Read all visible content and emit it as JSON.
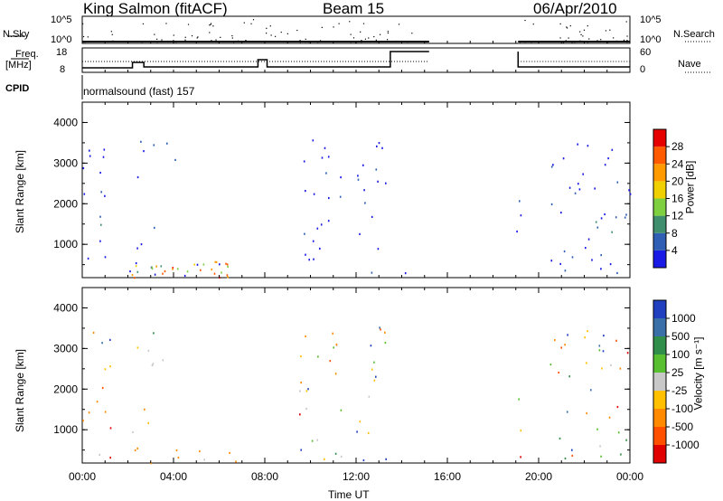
{
  "header": {
    "station": "King Salmon (fitACF)",
    "beam": "Beam 15",
    "date": "06/Apr/2010"
  },
  "panels": {
    "nsky_label": "N.Sky",
    "nsearch_label": "N.Search",
    "nsky_ticks": [
      "10^5",
      "10^0"
    ],
    "nsearch_ticks": [
      "10^5",
      "10^0"
    ],
    "freq_label_top": "Freq.",
    "freq_label_unit": "[MHz]",
    "freq_ticks": [
      "18",
      "8"
    ],
    "nave_label": "Nave",
    "nave_ticks": [
      "60",
      "0"
    ],
    "cpid_label": "CPID",
    "cpid_value": "normalsound (fast) 157"
  },
  "axes": {
    "ylabel": "Slant Range [km]",
    "xlabel": "Time UT",
    "yticks": [
      "1000",
      "2000",
      "3000",
      "4000"
    ],
    "xticks": [
      "00:00",
      "04:00",
      "08:00",
      "12:00",
      "16:00",
      "20:00",
      "00:00"
    ]
  },
  "power_scale": {
    "label": "Power [dB]",
    "ticks": [
      "4",
      "8",
      "12",
      "16",
      "20",
      "24",
      "28"
    ],
    "colors": [
      "#1a1ae6",
      "#2e5fb4",
      "#3f8f6e",
      "#7fd040",
      "#f0d000",
      "#ff9a00",
      "#ff5a00",
      "#e60000"
    ]
  },
  "velocity_scale": {
    "label": "Velocity [m s⁻¹]",
    "ticks": [
      "1000",
      "500",
      "100",
      "25",
      "-25",
      "-100",
      "-500",
      "-1000"
    ],
    "colors": [
      "#2040c0",
      "#3a70a8",
      "#2f8f4a",
      "#58c030",
      "#c8c8c8",
      "#ffc000",
      "#ff8a00",
      "#ff5000",
      "#e00000"
    ]
  },
  "chart_data": [
    {
      "type": "heatmap",
      "title": "Power",
      "x_range_hours": [
        0,
        24
      ],
      "ylim": [
        180,
        4500
      ],
      "clusters": [
        {
          "t0": 0.0,
          "t1": 1.3,
          "r0": 300,
          "r1": 3500,
          "level": "low"
        },
        {
          "t0": 0.1,
          "t1": 1.1,
          "r0": 1300,
          "r1": 1800,
          "level": "mid"
        },
        {
          "t0": 2.3,
          "t1": 4.2,
          "r0": 2600,
          "r1": 3600,
          "level": "low"
        },
        {
          "t0": 2.0,
          "t1": 3.2,
          "r0": 300,
          "r1": 1600,
          "level": "low"
        },
        {
          "t0": 2.0,
          "t1": 7.0,
          "r0": 200,
          "r1": 600,
          "level": "high"
        },
        {
          "t0": 9.5,
          "t1": 11.5,
          "r0": 250,
          "r1": 3600,
          "level": "low"
        },
        {
          "t0": 12.0,
          "t1": 13.5,
          "r0": 250,
          "r1": 3600,
          "level": "low"
        },
        {
          "t0": 13.5,
          "t1": 15.0,
          "r0": 250,
          "r1": 450,
          "level": "low"
        },
        {
          "t0": 19.0,
          "t1": 19.3,
          "r0": 250,
          "r1": 3200,
          "level": "low"
        },
        {
          "t0": 20.5,
          "t1": 24.0,
          "r0": 250,
          "r1": 3500,
          "level": "low"
        },
        {
          "t0": 22.0,
          "t1": 24.0,
          "r0": 1000,
          "r1": 1800,
          "level": "mid"
        }
      ]
    },
    {
      "type": "heatmap",
      "title": "Velocity",
      "x_range_hours": [
        0,
        24
      ],
      "ylim": [
        180,
        4500
      ],
      "clusters": [
        {
          "t0": 0.0,
          "t1": 1.3,
          "r0": 300,
          "r1": 3500,
          "level": "mixed"
        },
        {
          "t0": 0.2,
          "t1": 1.0,
          "r0": 1200,
          "r1": 1800,
          "level": "neg"
        },
        {
          "t0": 2.3,
          "t1": 4.2,
          "r0": 2600,
          "r1": 3600,
          "level": "low"
        },
        {
          "t0": 2.0,
          "t1": 7.0,
          "r0": 200,
          "r1": 650,
          "level": "neg"
        },
        {
          "t0": 2.0,
          "t1": 3.2,
          "r0": 300,
          "r1": 1600,
          "level": "neg"
        },
        {
          "t0": 9.5,
          "t1": 11.5,
          "r0": 250,
          "r1": 3600,
          "level": "mixed"
        },
        {
          "t0": 12.0,
          "t1": 13.5,
          "r0": 250,
          "r1": 3600,
          "level": "mixed"
        },
        {
          "t0": 11.0,
          "t1": 15.0,
          "r0": 250,
          "r1": 450,
          "level": "pos"
        },
        {
          "t0": 19.0,
          "t1": 19.3,
          "r0": 250,
          "r1": 3200,
          "level": "mixed"
        },
        {
          "t0": 20.5,
          "t1": 24.0,
          "r0": 250,
          "r1": 3500,
          "level": "mixed"
        }
      ]
    }
  ]
}
